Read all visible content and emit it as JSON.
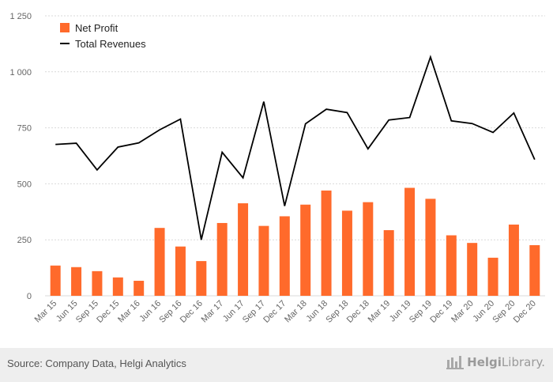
{
  "chart_data": {
    "type": "bar",
    "title": "",
    "xlabel": "",
    "ylabel": "",
    "ylim": [
      0,
      1250
    ],
    "yticks": [
      0,
      250,
      500,
      750,
      1000,
      1250
    ],
    "ytick_labels": [
      "0",
      "250",
      "500",
      "750",
      "1 000",
      "1 250"
    ],
    "grid": true,
    "legend_position": "top-left",
    "categories": [
      "Mar 15",
      "Jun 15",
      "Sep 15",
      "Dec 15",
      "Mar 16",
      "Jun 16",
      "Sep 16",
      "Dec 16",
      "Mar 17",
      "Jun 17",
      "Sep 17",
      "Dec 17",
      "Mar 18",
      "Jun 18",
      "Sep 18",
      "Dec 18",
      "Mar 19",
      "Jun 19",
      "Sep 19",
      "Dec 19",
      "Mar 20",
      "Jun 20",
      "Sep 20",
      "Dec 20"
    ],
    "series": [
      {
        "name": "Net Profit",
        "kind": "bar",
        "color": "#ff6a2b",
        "values": [
          135,
          128,
          110,
          82,
          67,
          303,
          220,
          155,
          325,
          413,
          312,
          355,
          407,
          470,
          380,
          418,
          293,
          482,
          433,
          270,
          236,
          170,
          318,
          226
        ]
      },
      {
        "name": "Total Revenues",
        "kind": "line",
        "color": "#000000",
        "values": [
          676,
          681,
          562,
          664,
          683,
          741,
          789,
          250,
          641,
          527,
          867,
          401,
          768,
          833,
          818,
          656,
          785,
          796,
          1066,
          781,
          769,
          729,
          816,
          608
        ]
      }
    ]
  },
  "footer": {
    "source": "Source: Company Data, Helgi Analytics",
    "brand_strong": "Helgi",
    "brand_rest": "Library.",
    "logo_icon": "helgi-library-logo-icon"
  },
  "colors": {
    "grid": "#d9d9d9",
    "axis_text": "#666666",
    "footer_bg": "#eeeeee"
  }
}
